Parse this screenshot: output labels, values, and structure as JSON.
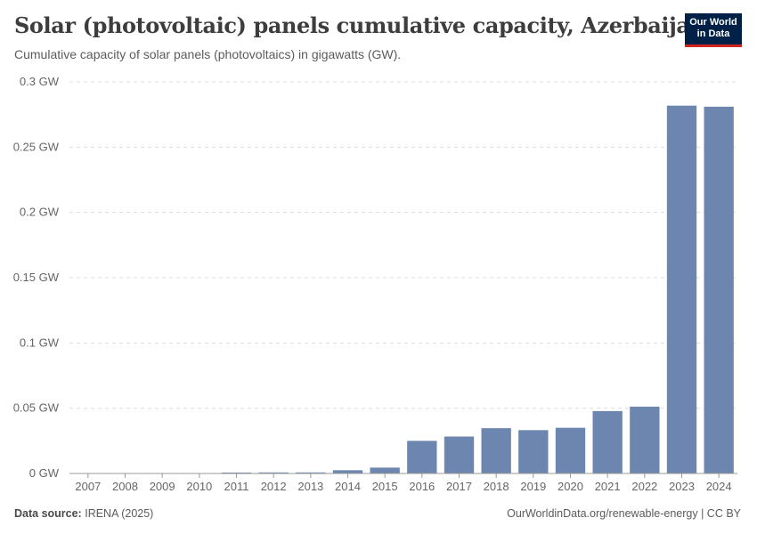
{
  "header": {
    "title": "Solar (photovoltaic) panels cumulative capacity, Azerbaijan",
    "subtitle": "Cumulative capacity of solar panels (photovoltaics) in gigawatts (GW)."
  },
  "logo": {
    "line1": "Our World",
    "line2": "in Data"
  },
  "footer": {
    "source_label": "Data source:",
    "source_value": "IRENA (2025)",
    "url_license": "OurWorldinData.org/renewable-energy | CC BY"
  },
  "colors": {
    "bar": "#6c86b0",
    "grid": "#dddddd",
    "axis": "#999999",
    "tick_text": "#666666"
  },
  "chart_data": {
    "type": "bar",
    "title": "Solar (photovoltaic) panels cumulative capacity, Azerbaijan",
    "categories": [
      "2007",
      "2008",
      "2009",
      "2010",
      "2011",
      "2012",
      "2013",
      "2014",
      "2015",
      "2016",
      "2017",
      "2018",
      "2019",
      "2020",
      "2021",
      "2022",
      "2023",
      "2024"
    ],
    "values": [
      0.0001,
      0.0001,
      0.0001,
      0.0002,
      0.0007,
      0.0008,
      0.0008,
      0.0025,
      0.0045,
      0.025,
      0.0283,
      0.0347,
      0.0332,
      0.035,
      0.0478,
      0.0512,
      0.2818,
      0.281
    ],
    "ylim": [
      0,
      0.3
    ],
    "yticks": [
      0,
      0.05,
      0.1,
      0.15,
      0.2,
      0.25,
      0.3
    ],
    "ytick_labels": [
      "0 GW",
      "0.05 GW",
      "0.1 GW",
      "0.15 GW",
      "0.2 GW",
      "0.25 GW",
      "0.3 GW"
    ],
    "grid": true
  }
}
